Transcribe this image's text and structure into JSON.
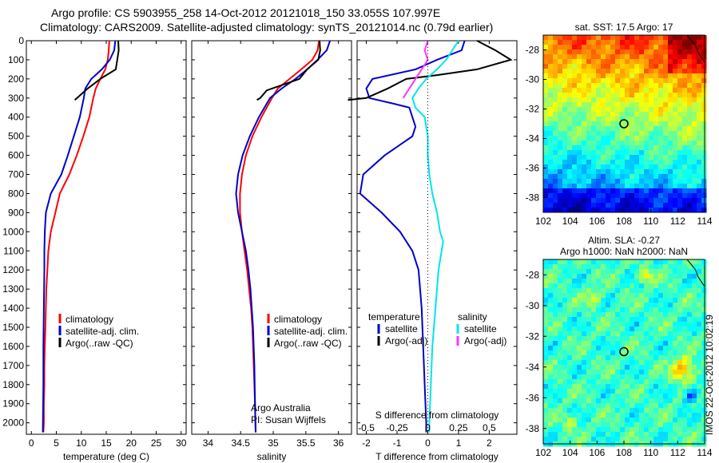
{
  "header": {
    "line1": "Argo profile: CS 5903955_258 14-Oct-2012 20121018_150 33.055S 107.997E",
    "line2": "Climatology: CARS2009. Satellite-adjusted climatology: synTS_20121014.nc (0.79d earlier)"
  },
  "colors": {
    "climatology": "#ff0000",
    "satellite": "#0000cc",
    "argo": "#000000",
    "satellite_s": "#00e5ee",
    "argo_s": "#ff33ff"
  },
  "chart_data": [
    {
      "type": "line",
      "xlabel": "temperature (deg C)",
      "xlim": [
        -1,
        31
      ],
      "xticks": [
        0,
        5,
        10,
        15,
        20,
        25,
        30
      ],
      "ylim": [
        2060,
        0
      ],
      "yticks": [
        0,
        100,
        200,
        300,
        400,
        500,
        600,
        700,
        800,
        900,
        1000,
        1100,
        1200,
        1300,
        1400,
        1500,
        1600,
        1700,
        1800,
        1900,
        2000
      ],
      "legend": [
        "climatology",
        "satellite-adj. clim.",
        "Argo(..raw -QC)"
      ],
      "series": [
        {
          "name": "climatology",
          "color": "#ff0000",
          "points": [
            [
              15.6,
              0
            ],
            [
              15.5,
              50
            ],
            [
              15.3,
              100
            ],
            [
              14.8,
              150
            ],
            [
              13.8,
              200
            ],
            [
              12.9,
              250
            ],
            [
              12.4,
              300
            ],
            [
              11.6,
              400
            ],
            [
              10.4,
              500
            ],
            [
              9.1,
              600
            ],
            [
              7.6,
              700
            ],
            [
              5.7,
              800
            ],
            [
              4.8,
              900
            ],
            [
              3.9,
              1000
            ],
            [
              3.4,
              1100
            ],
            [
              3.2,
              1200
            ],
            [
              3.0,
              1300
            ],
            [
              2.9,
              1400
            ],
            [
              2.8,
              1500
            ],
            [
              2.7,
              1600
            ],
            [
              2.6,
              1700
            ],
            [
              2.6,
              1800
            ],
            [
              2.5,
              1900
            ],
            [
              2.5,
              2000
            ],
            [
              2.4,
              2050
            ]
          ]
        },
        {
          "name": "satellite-adj. clim.",
          "color": "#0000cc",
          "points": [
            [
              16.8,
              0
            ],
            [
              16.6,
              50
            ],
            [
              15.7,
              100
            ],
            [
              14.1,
              150
            ],
            [
              12.0,
              200
            ],
            [
              10.8,
              250
            ],
            [
              10.5,
              300
            ],
            [
              9.7,
              400
            ],
            [
              8.5,
              500
            ],
            [
              7.3,
              600
            ],
            [
              6.0,
              700
            ],
            [
              3.9,
              800
            ],
            [
              2.9,
              900
            ],
            [
              2.7,
              1000
            ],
            [
              2.6,
              1100
            ],
            [
              2.6,
              1200
            ],
            [
              2.5,
              1400
            ],
            [
              2.4,
              1600
            ],
            [
              2.4,
              1800
            ],
            [
              2.3,
              2050
            ]
          ]
        },
        {
          "name": "Argo(..raw -QC)",
          "color": "#000000",
          "points": [
            [
              17.4,
              0
            ],
            [
              17.5,
              50
            ],
            [
              17.2,
              100
            ],
            [
              16.9,
              150
            ],
            [
              13.8,
              200
            ],
            [
              11.3,
              250
            ],
            [
              8.7,
              310
            ]
          ]
        }
      ]
    },
    {
      "type": "line",
      "xlabel": "salinity",
      "xlim": [
        33.75,
        36.2
      ],
      "xticks": [
        34,
        34.5,
        35,
        35.5,
        36
      ],
      "xticklabels": [
        "34",
        "34.5",
        "35",
        "35.5",
        "36"
      ],
      "ylim": [
        2060,
        0
      ],
      "legend": [
        "climatology",
        "satellite-adj. clim.",
        "Argo(..raw -QC)"
      ],
      "annotations": [
        "Argo Australia",
        "PI: Susan Wijffels"
      ],
      "series": [
        {
          "name": "climatology",
          "color": "#ff0000",
          "points": [
            [
              35.7,
              0
            ],
            [
              35.68,
              50
            ],
            [
              35.6,
              100
            ],
            [
              35.43,
              150
            ],
            [
              35.25,
              200
            ],
            [
              35.07,
              250
            ],
            [
              34.98,
              300
            ],
            [
              34.82,
              400
            ],
            [
              34.68,
              500
            ],
            [
              34.58,
              600
            ],
            [
              34.52,
              700
            ],
            [
              34.49,
              800
            ],
            [
              34.49,
              900
            ],
            [
              34.52,
              1000
            ],
            [
              34.56,
              1100
            ],
            [
              34.6,
              1200
            ],
            [
              34.63,
              1300
            ],
            [
              34.66,
              1400
            ],
            [
              34.68,
              1500
            ],
            [
              34.7,
              1700
            ],
            [
              34.72,
              1900
            ],
            [
              34.73,
              2050
            ]
          ]
        },
        {
          "name": "satellite-adj. clim.",
          "color": "#0000cc",
          "points": [
            [
              35.87,
              0
            ],
            [
              35.82,
              50
            ],
            [
              35.68,
              100
            ],
            [
              35.52,
              150
            ],
            [
              35.34,
              200
            ],
            [
              35.13,
              250
            ],
            [
              34.95,
              300
            ],
            [
              34.78,
              400
            ],
            [
              34.64,
              500
            ],
            [
              34.53,
              600
            ],
            [
              34.46,
              700
            ],
            [
              34.43,
              800
            ],
            [
              34.46,
              900
            ],
            [
              34.52,
              1000
            ],
            [
              34.58,
              1100
            ],
            [
              34.62,
              1200
            ],
            [
              34.65,
              1300
            ],
            [
              34.67,
              1400
            ],
            [
              34.69,
              1500
            ],
            [
              34.71,
              1700
            ],
            [
              34.72,
              1900
            ],
            [
              34.73,
              2050
            ]
          ]
        },
        {
          "name": "Argo(..raw -QC)",
          "color": "#000000",
          "points": [
            [
              35.71,
              0
            ],
            [
              35.72,
              50
            ],
            [
              35.69,
              100
            ],
            [
              35.52,
              150
            ],
            [
              35.4,
              200
            ],
            [
              34.9,
              260
            ],
            [
              34.8,
              300
            ],
            [
              34.75,
              310
            ]
          ]
        }
      ]
    },
    {
      "type": "line",
      "xlabel": "T difference from climatology",
      "x2label": "S difference from climatology",
      "xlim": [
        -2.3,
        2.9
      ],
      "xticks": [
        -2,
        -1,
        0,
        1,
        2
      ],
      "x2ticks": [
        -0.5,
        -0.25,
        0,
        0.25,
        0.5
      ],
      "ylim": [
        2060,
        0
      ],
      "legend": {
        "temperature": [
          "satellite",
          "Argo(-adj)"
        ],
        "salinity": [
          "satellite",
          "Argo(-adj)"
        ]
      },
      "series": [
        {
          "name": "temperature satellite",
          "color": "#0000cc",
          "points": [
            [
              1.2,
              0
            ],
            [
              1.1,
              50
            ],
            [
              0.3,
              100
            ],
            [
              -0.4,
              150
            ],
            [
              -1.8,
              200
            ],
            [
              -2.0,
              250
            ],
            [
              -1.9,
              300
            ],
            [
              -1.1,
              330
            ],
            [
              -0.6,
              350
            ],
            [
              -0.5,
              400
            ],
            [
              -0.4,
              450
            ],
            [
              -0.5,
              500
            ],
            [
              -1.4,
              600
            ],
            [
              -2.1,
              700
            ],
            [
              -2.2,
              800
            ],
            [
              -1.5,
              900
            ],
            [
              -0.9,
              1000
            ],
            [
              -0.5,
              1100
            ],
            [
              -0.3,
              1200
            ],
            [
              -0.2,
              1400
            ],
            [
              -0.15,
              1600
            ],
            [
              -0.1,
              1800
            ],
            [
              -0.05,
              2000
            ],
            [
              -0.05,
              2050
            ]
          ]
        },
        {
          "name": "temperature Argo(-adj)",
          "color": "#000000",
          "points": [
            [
              1.6,
              0
            ],
            [
              2.2,
              50
            ],
            [
              2.7,
              100
            ],
            [
              1.6,
              150
            ],
            [
              0.3,
              180
            ],
            [
              -0.7,
              200
            ],
            [
              -1.3,
              250
            ],
            [
              -2.0,
              300
            ],
            [
              -2.6,
              310
            ]
          ]
        },
        {
          "name": "salinity satellite",
          "color": "#00e5ee",
          "points": [
            [
              1.0,
              0
            ],
            [
              0.8,
              50
            ],
            [
              0.6,
              100
            ],
            [
              0.3,
              150
            ],
            [
              -0.05,
              200
            ],
            [
              -0.3,
              250
            ],
            [
              -0.5,
              300
            ],
            [
              -0.4,
              350
            ],
            [
              -0.1,
              400
            ],
            [
              0.0,
              500
            ],
            [
              0.0,
              600
            ],
            [
              0.05,
              700
            ],
            [
              0.15,
              800
            ],
            [
              0.3,
              900
            ],
            [
              0.4,
              1000
            ],
            [
              0.5,
              1050
            ],
            [
              0.45,
              1100
            ],
            [
              0.35,
              1200
            ],
            [
              0.25,
              1400
            ],
            [
              0.15,
              1600
            ],
            [
              0.1,
              1800
            ],
            [
              0.05,
              2000
            ],
            [
              0.05,
              2050
            ]
          ]
        },
        {
          "name": "salinity Argo(-adj)",
          "color": "#ff33ff",
          "points": [
            [
              0.0,
              0
            ],
            [
              -0.1,
              50
            ],
            [
              0.0,
              100
            ],
            [
              -0.2,
              150
            ],
            [
              -0.4,
              200
            ],
            [
              -0.6,
              250
            ],
            [
              -0.8,
              300
            ]
          ]
        }
      ]
    },
    {
      "type": "heatmap",
      "title": "sat. SST: 17.5 Argo: 17",
      "xlim": [
        102,
        114
      ],
      "ylim": [
        -39,
        -27
      ],
      "xticks": [
        102,
        104,
        106,
        108,
        110,
        112,
        114
      ],
      "yticks": [
        -28,
        -30,
        -32,
        -34,
        -36,
        -38
      ],
      "marker": [
        108,
        -33
      ]
    },
    {
      "type": "heatmap",
      "title": "Altim. SLA: -0.27",
      "subtitle": "Argo h1000: NaN h2000: NaN",
      "xlim": [
        102,
        114
      ],
      "ylim": [
        -39,
        -27
      ],
      "xticks": [
        102,
        104,
        106,
        108,
        110,
        112,
        114
      ],
      "yticks": [
        -28,
        -30,
        -32,
        -34,
        -36,
        -38
      ],
      "marker": [
        108,
        -33
      ]
    }
  ],
  "stamp": "IMOS 22-Oct-2012 10:02:19"
}
